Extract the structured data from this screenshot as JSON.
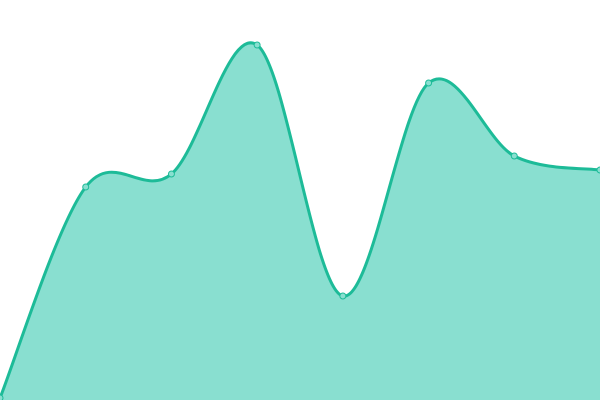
{
  "chart_data": {
    "type": "area",
    "curve": "smooth",
    "x": [
      0,
      1,
      2,
      3,
      4,
      5,
      6,
      7
    ],
    "values": [
      2,
      213,
      226,
      355,
      104,
      317,
      244,
      230
    ],
    "ylim": [
      0,
      400
    ],
    "grid": false,
    "axes": false,
    "legend": "none",
    "colors": {
      "line": "#1dbb98",
      "fill": "#89dfd0",
      "marker_fill": "#89dfd0"
    }
  }
}
